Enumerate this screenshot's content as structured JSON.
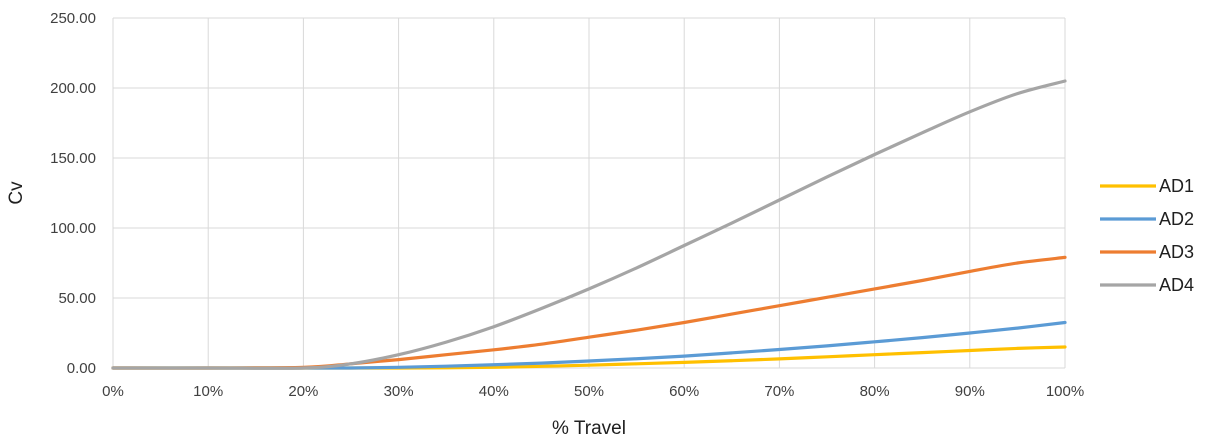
{
  "chart_data": {
    "type": "line",
    "title": "",
    "xlabel": "% Travel",
    "ylabel": "Cv",
    "xlim": [
      0,
      100
    ],
    "ylim": [
      0,
      250
    ],
    "x_tick_labels": [
      "0%",
      "10%",
      "20%",
      "30%",
      "40%",
      "50%",
      "60%",
      "70%",
      "80%",
      "90%",
      "100%"
    ],
    "y_tick_labels": [
      "0.00",
      "50.00",
      "100.00",
      "150.00",
      "200.00",
      "250.00"
    ],
    "grid": true,
    "legend_position": "right",
    "x": [
      0,
      10,
      20,
      25,
      30,
      35,
      40,
      45,
      50,
      55,
      60,
      65,
      70,
      75,
      80,
      85,
      90,
      95,
      100
    ],
    "series": [
      {
        "name": "AD1",
        "color": "#FFC000",
        "values": [
          0,
          0,
          0,
          0,
          0,
          0.2,
          0.5,
          1.2,
          2.0,
          3.0,
          4.0,
          5.2,
          6.5,
          8.0,
          9.5,
          11.0,
          12.5,
          14.0,
          15.0
        ]
      },
      {
        "name": "AD2",
        "color": "#5B9BD5",
        "values": [
          0,
          0,
          0,
          0,
          0.5,
          1.3,
          2.3,
          3.5,
          5.0,
          6.6,
          8.5,
          10.8,
          13.2,
          15.8,
          18.7,
          21.7,
          25.0,
          28.5,
          32.5
        ]
      },
      {
        "name": "AD3",
        "color": "#ED7D31",
        "values": [
          0,
          0,
          0.5,
          3.0,
          6.0,
          9.5,
          13.0,
          17.0,
          22.0,
          27.0,
          32.5,
          38.5,
          44.5,
          50.5,
          56.5,
          62.5,
          69.0,
          75.0,
          79.0
        ]
      },
      {
        "name": "AD4",
        "color": "#A5A5A5",
        "values": [
          0,
          0,
          0,
          3.0,
          9.5,
          18.5,
          29.5,
          42.5,
          56.5,
          71.5,
          87.5,
          103.5,
          120.0,
          136.5,
          152.5,
          168.0,
          183.0,
          196.0,
          205.0
        ]
      }
    ]
  }
}
